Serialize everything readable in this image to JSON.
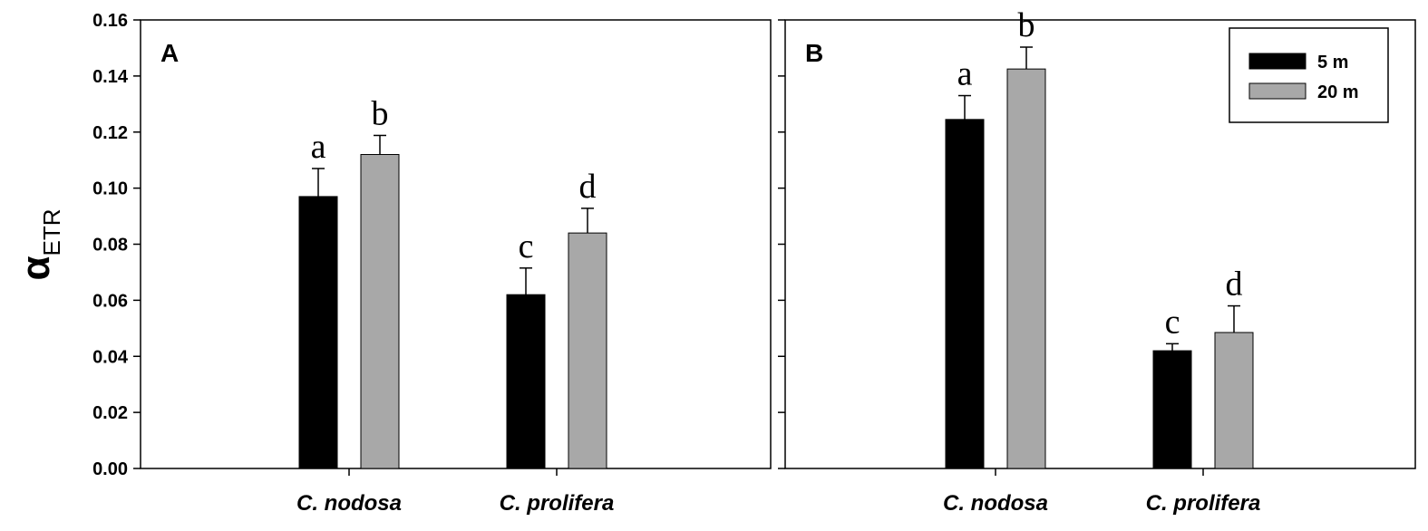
{
  "chart_data": [
    {
      "type": "bar",
      "panel_label": "A",
      "categories": [
        "C. nodosa",
        "C. prolifera"
      ],
      "ylabel": {
        "symbol": "α",
        "subscript": "ETR"
      },
      "ylim": [
        0,
        0.16
      ],
      "yticks": [
        "0.00",
        "0.02",
        "0.04",
        "0.06",
        "0.08",
        "0.10",
        "0.12",
        "0.14",
        "0.16"
      ],
      "series": [
        {
          "name": "5 m",
          "color": "#000000",
          "values": [
            0.097,
            0.062
          ],
          "errors": [
            0.01,
            0.0095
          ],
          "letters": [
            "a",
            "c"
          ]
        },
        {
          "name": "20 m",
          "color": "#a8a8a8",
          "values": [
            0.112,
            0.084
          ],
          "errors": [
            0.0068,
            0.0088
          ],
          "letters": [
            "b",
            "d"
          ]
        }
      ],
      "legend": false
    },
    {
      "type": "bar",
      "panel_label": "B",
      "categories": [
        "C. nodosa",
        "C. prolifera"
      ],
      "ylim": [
        0,
        0.16
      ],
      "series": [
        {
          "name": "5 m",
          "color": "#000000",
          "values": [
            0.1245,
            0.042
          ],
          "errors": [
            0.0085,
            0.0025
          ],
          "letters": [
            "a",
            "c"
          ]
        },
        {
          "name": "20 m",
          "color": "#a8a8a8",
          "values": [
            0.1425,
            0.0485
          ],
          "errors": [
            0.0078,
            0.0095
          ],
          "letters": [
            "b",
            "d"
          ]
        }
      ],
      "legend": true,
      "legend_position": "top-right"
    }
  ]
}
